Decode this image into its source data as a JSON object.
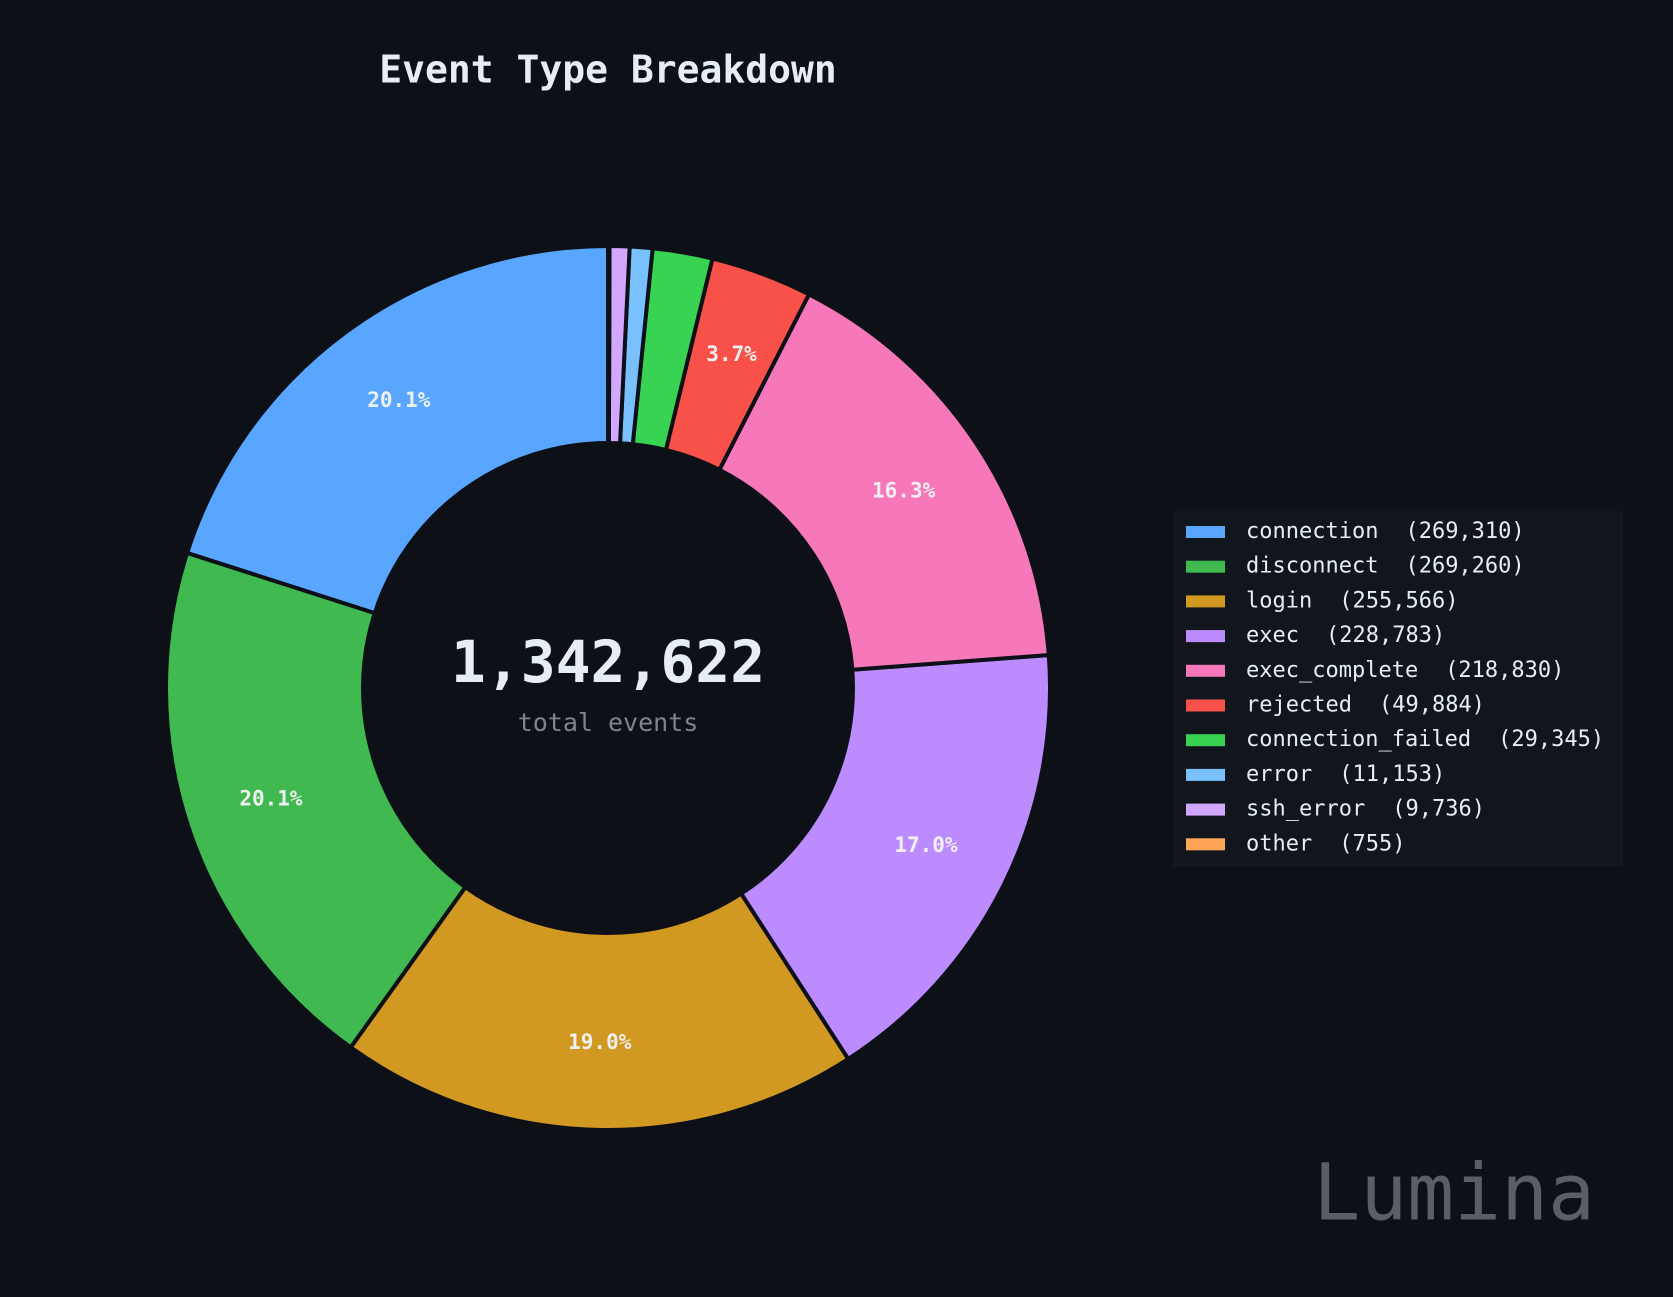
{
  "chart_data": {
    "type": "donut",
    "title": "Event Type Breakdown",
    "categories": [
      "connection",
      "disconnect",
      "login",
      "exec",
      "exec_complete",
      "rejected",
      "connection_failed",
      "error",
      "ssh_error",
      "other"
    ],
    "values": [
      269310,
      269260,
      255566,
      228783,
      218830,
      49884,
      29345,
      11153,
      9736,
      755
    ],
    "value_labels": [
      "(269,310)",
      "(269,260)",
      "(255,566)",
      "(228,783)",
      "(218,830)",
      "(49,884)",
      "(29,345)",
      "(11,153)",
      "(9,736)",
      "(755)"
    ],
    "percent_labels": [
      "20.1%",
      "20.1%",
      "19.0%",
      "17.0%",
      "16.3%",
      "3.7%",
      null,
      null,
      null,
      null
    ],
    "colors": [
      "#58a6ff",
      "#3fb950",
      "#d29922",
      "#bc8cff",
      "#f778ba",
      "#f85149",
      "#39d353",
      "#79c0ff",
      "#d2a8ff",
      "#ffa657"
    ],
    "center_label": "1,342,622",
    "center_sublabel": "total events",
    "legend": "right"
  },
  "watermark": "Lumina"
}
